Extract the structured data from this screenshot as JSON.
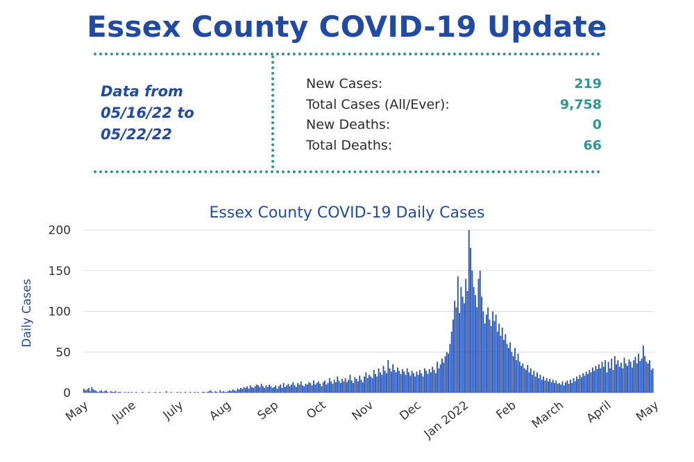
{
  "header": {
    "title": "Essex County COVID-19 Update",
    "date_range_lines": [
      "Data from",
      "05/16/22 to",
      "05/22/22"
    ]
  },
  "stats": [
    {
      "label": "New Cases:",
      "value": "219"
    },
    {
      "label": "Total Cases (All/Ever):",
      "value": "9,758"
    },
    {
      "label": "New Deaths:",
      "value": "0"
    },
    {
      "label": "Total Deaths:",
      "value": "66"
    }
  ],
  "colors": {
    "title": "#1f4ba6",
    "accent": "#2a9a8e",
    "bar": "#2151b8",
    "grid": "#dcdcdc"
  },
  "chart_data": {
    "type": "bar",
    "title": "Essex County COVID-19 Daily Cases",
    "ylabel": "Daily Cases",
    "xlabel": "",
    "ylim": [
      0,
      200
    ],
    "yticks": [
      0,
      50,
      100,
      150,
      200
    ],
    "grid": true,
    "months": [
      "May",
      "June",
      "July",
      "Aug",
      "Sep",
      "Oct",
      "Nov",
      "Dec",
      "Jan 2022",
      "Feb",
      "March",
      "April",
      "May"
    ],
    "bars_per_month": 30,
    "values": [
      5,
      3,
      4,
      6,
      2,
      7,
      4,
      3,
      2,
      1,
      2,
      3,
      1,
      2,
      3,
      1,
      0,
      2,
      1,
      1,
      2,
      0,
      1,
      1,
      0,
      0,
      1,
      0,
      1,
      0,
      1,
      0,
      0,
      1,
      0,
      0,
      0,
      1,
      0,
      0,
      0,
      1,
      0,
      0,
      0,
      1,
      0,
      0,
      1,
      0,
      0,
      0,
      2,
      0,
      0,
      1,
      0,
      0,
      0,
      1,
      0,
      1,
      0,
      0,
      1,
      0,
      0,
      1,
      0,
      0,
      1,
      0,
      1,
      0,
      0,
      1,
      1,
      0,
      1,
      2,
      3,
      1,
      0,
      2,
      1,
      0,
      3,
      1,
      2,
      1,
      1,
      2,
      3,
      2,
      4,
      3,
      2,
      5,
      4,
      6,
      5,
      7,
      6,
      8,
      5,
      9,
      7,
      6,
      8,
      10,
      9,
      7,
      11,
      8,
      6,
      9,
      7,
      10,
      8,
      6,
      7,
      9,
      5,
      8,
      10,
      6,
      12,
      7,
      9,
      11,
      8,
      10,
      13,
      9,
      7,
      12,
      10,
      14,
      9,
      8,
      11,
      10,
      13,
      12,
      9,
      15,
      10,
      12,
      14,
      11,
      8,
      13,
      15,
      10,
      12,
      18,
      14,
      11,
      16,
      13,
      20,
      15,
      12,
      17,
      14,
      18,
      13,
      16,
      22,
      15,
      12,
      19,
      17,
      14,
      21,
      16,
      13,
      20,
      25,
      18,
      22,
      20,
      18,
      28,
      23,
      20,
      30,
      25,
      22,
      33,
      27,
      24,
      40,
      30,
      26,
      35,
      28,
      25,
      31,
      27,
      23,
      29,
      26,
      22,
      30,
      25,
      21,
      27,
      24,
      20,
      26,
      22,
      28,
      24,
      20,
      30,
      27,
      23,
      29,
      25,
      32,
      28,
      24,
      38,
      30,
      35,
      42,
      37,
      45,
      50,
      48,
      60,
      75,
      90,
      113,
      105,
      143,
      98,
      130,
      118,
      110,
      140,
      125,
      200,
      178,
      150,
      130,
      120,
      105,
      140,
      150,
      118,
      100,
      85,
      96,
      105,
      90,
      82,
      100,
      88,
      96,
      75,
      85,
      70,
      80,
      65,
      72,
      60,
      55,
      62,
      50,
      45,
      55,
      40,
      48,
      38,
      33,
      36,
      30,
      28,
      34,
      25,
      30,
      22,
      27,
      20,
      25,
      18,
      22,
      16,
      20,
      15,
      18,
      14,
      17,
      13,
      16,
      12,
      15,
      11,
      12,
      10,
      14,
      9,
      13,
      15,
      11,
      16,
      12,
      18,
      14,
      20,
      17,
      22,
      19,
      24,
      21,
      26,
      23,
      28,
      25,
      31,
      27,
      33,
      29,
      35,
      30,
      38,
      32,
      40,
      25,
      38,
      30,
      42,
      28,
      45,
      35,
      40,
      32,
      37,
      30,
      43,
      36,
      33,
      41,
      38,
      31,
      40,
      44,
      36,
      48,
      39,
      42,
      58,
      45,
      38,
      36,
      40,
      28,
      30
    ]
  }
}
